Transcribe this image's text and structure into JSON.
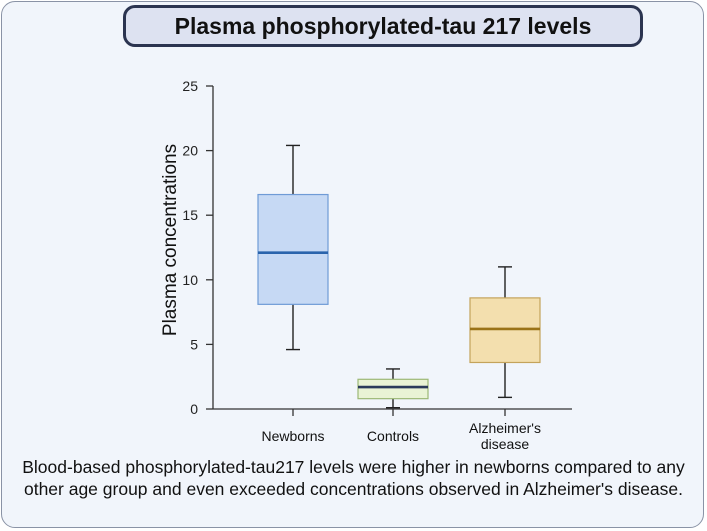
{
  "colors": {
    "frame_border": "#8a93a6",
    "background": "#f1f5fb",
    "title_bg": "#dde2f1",
    "title_border": "#2b3450"
  },
  "chart_data": {
    "type": "box",
    "title": "Plasma phosphorylated-tau 217 levels",
    "ylabel": "Plasma concentrations",
    "xlabel": "",
    "ylim": [
      0,
      25
    ],
    "yticks": [
      0,
      5,
      10,
      15,
      20,
      25
    ],
    "grid": false,
    "categories": [
      "Newborns",
      "Controls",
      "Alzheimer's disease"
    ],
    "category_lines": [
      [
        "Newborns"
      ],
      [
        "Controls"
      ],
      [
        "Alzheimer's",
        "disease"
      ]
    ],
    "boxes": [
      {
        "name": "Newborns",
        "min": 4.6,
        "q1": 8.1,
        "median": 12.1,
        "q3": 16.6,
        "max": 20.4,
        "fill": "#c6d9f4",
        "stroke": "#6f9bd6",
        "median_color": "#2a64ac"
      },
      {
        "name": "Controls",
        "min": 0.1,
        "q1": 0.8,
        "median": 1.7,
        "q3": 2.3,
        "max": 3.1,
        "fill": "#e9f3d5",
        "stroke": "#9cb876",
        "median_color": "#2a3a5a"
      },
      {
        "name": "Alzheimer's disease",
        "min": 0.9,
        "q1": 3.6,
        "median": 6.2,
        "q3": 8.6,
        "max": 11.0,
        "fill": "#f3dfae",
        "stroke": "#c4a35b",
        "median_color": "#9a7318"
      }
    ]
  },
  "caption": "Blood-based phosphorylated-tau217 levels were higher in newborns compared to any other age group and even exceeded concentrations observed in Alzheimer's disease."
}
